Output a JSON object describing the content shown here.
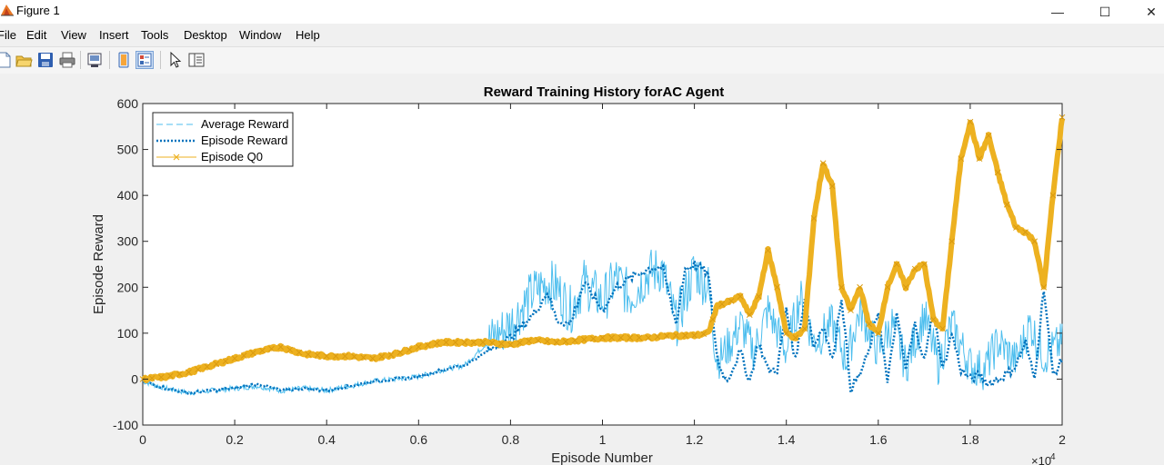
{
  "window": {
    "title": "Figure 1",
    "minimize_glyph": "—",
    "maximize_glyph": "☐",
    "close_glyph": "✕",
    "icon": "matlab-figure-icon"
  },
  "menu": [
    "File",
    "Edit",
    "View",
    "Insert",
    "Tools",
    "Desktop",
    "Window",
    "Help"
  ],
  "toolbar": [
    "new-figure-icon",
    "open-file-icon",
    "save-icon",
    "print-icon",
    "link-plot-icon",
    "hide-plot-tools-icon",
    "show-plot-tools-icon",
    "edit-plot-icon",
    "property-editor-icon"
  ],
  "chart_data": {
    "type": "line",
    "title": "Reward Training History forAC Agent",
    "xlabel": "Episode Number",
    "ylabel": "Episode Reward",
    "xlim": [
      0,
      20000
    ],
    "ylim": [
      -100,
      600
    ],
    "x_exponent_label": "×10",
    "x_exponent": "4",
    "xticks": [
      0,
      0.2,
      0.4,
      0.6,
      0.8,
      1,
      1.2,
      1.4,
      1.6,
      1.8,
      2
    ],
    "xtick_labels": [
      "0",
      "0.2",
      "0.4",
      "0.6",
      "0.8",
      "1",
      "1.2",
      "1.4",
      "1.6",
      "1.8",
      "2"
    ],
    "yticks": [
      -100,
      0,
      100,
      200,
      300,
      400,
      500,
      600
    ],
    "ytick_labels": [
      "-100",
      "0",
      "100",
      "200",
      "300",
      "400",
      "500",
      "600"
    ],
    "grid": false,
    "legend_position": "top-left",
    "series": [
      {
        "name": "Average Reward",
        "color": "#4DBEEE",
        "style": "dashed",
        "x": [
          0,
          500,
          1000,
          1500,
          2000,
          2500,
          3000,
          3500,
          4000,
          4500,
          5000,
          5500,
          6000,
          6500,
          7000,
          7500,
          8000,
          8500,
          8800,
          9000,
          9300,
          9600,
          10000,
          10300,
          10600,
          11000,
          11300,
          11600,
          12000,
          12300,
          12500,
          12800,
          13000,
          13300,
          13600,
          14000,
          14300,
          14600,
          15000,
          15300,
          15600,
          16000,
          16300,
          16600,
          17000,
          17300,
          17600,
          18000,
          18300,
          18600,
          19000,
          19300,
          19600,
          20000
        ],
        "values": [
          -5,
          -20,
          -30,
          -25,
          -20,
          -15,
          -25,
          -20,
          -25,
          -15,
          -5,
          0,
          5,
          20,
          30,
          80,
          120,
          190,
          210,
          200,
          150,
          210,
          170,
          220,
          180,
          230,
          240,
          120,
          240,
          200,
          40,
          80,
          120,
          60,
          150,
          60,
          180,
          80,
          120,
          40,
          150,
          60,
          120,
          30,
          140,
          30,
          120,
          30,
          20,
          80,
          40,
          120,
          50,
          80
        ]
      },
      {
        "name": "Episode Reward",
        "color": "#0072BD",
        "style": "dotted",
        "x": [
          0,
          500,
          1000,
          1500,
          2000,
          2500,
          3000,
          3500,
          4000,
          4500,
          5000,
          5500,
          6000,
          6500,
          7000,
          7500,
          8000,
          8500,
          8800,
          9000,
          9300,
          9600,
          10000,
          10300,
          10600,
          11000,
          11300,
          11600,
          11800,
          12000,
          12300,
          12500,
          12700,
          13000,
          13200,
          13400,
          13600,
          13800,
          14000,
          14200,
          14400,
          14600,
          14800,
          15000,
          15200,
          15400,
          15600,
          15800,
          16000,
          16200,
          16400,
          16600,
          16800,
          17000,
          17200,
          17400,
          17600,
          17800,
          18000,
          18200,
          18400,
          18600,
          18800,
          19000,
          19200,
          19400,
          19600,
          19800,
          20000
        ],
        "values": [
          -5,
          -20,
          -30,
          -25,
          -20,
          -10,
          -25,
          -20,
          -25,
          -15,
          -5,
          0,
          5,
          20,
          30,
          60,
          90,
          140,
          190,
          130,
          120,
          210,
          150,
          200,
          220,
          240,
          245,
          120,
          240,
          250,
          230,
          40,
          -5,
          60,
          -5,
          80,
          20,
          20,
          150,
          40,
          180,
          70,
          120,
          40,
          180,
          -20,
          10,
          60,
          150,
          -10,
          140,
          20,
          120,
          40,
          150,
          20,
          100,
          20,
          0,
          10,
          -10,
          0,
          10,
          30,
          80,
          0,
          200,
          10,
          40
        ]
      },
      {
        "name": "Episode Q0",
        "color": "#EDB120",
        "style": "solid",
        "marker": "x",
        "x": [
          0,
          500,
          1000,
          1500,
          2000,
          2500,
          3000,
          3500,
          4000,
          4500,
          5000,
          5500,
          6000,
          6500,
          7000,
          7500,
          8000,
          8500,
          9000,
          9500,
          10000,
          10500,
          11000,
          11500,
          12000,
          12300,
          12500,
          12800,
          13000,
          13200,
          13400,
          13600,
          13800,
          14000,
          14200,
          14400,
          14600,
          14800,
          15000,
          15200,
          15400,
          15600,
          15800,
          16000,
          16200,
          16400,
          16600,
          16800,
          17000,
          17200,
          17400,
          17600,
          17800,
          18000,
          18200,
          18400,
          18600,
          18800,
          19000,
          19200,
          19400,
          19600,
          19800,
          20000
        ],
        "values": [
          0,
          5,
          15,
          30,
          45,
          60,
          70,
          55,
          50,
          50,
          45,
          55,
          70,
          80,
          80,
          80,
          75,
          85,
          80,
          85,
          90,
          90,
          90,
          95,
          95,
          100,
          160,
          170,
          180,
          140,
          180,
          280,
          200,
          100,
          90,
          110,
          350,
          470,
          420,
          200,
          150,
          200,
          120,
          100,
          200,
          250,
          200,
          240,
          250,
          130,
          110,
          300,
          480,
          560,
          480,
          530,
          450,
          380,
          330,
          320,
          300,
          200,
          400,
          570
        ]
      }
    ]
  }
}
